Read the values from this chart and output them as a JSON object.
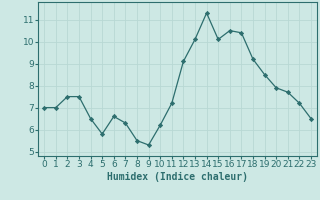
{
  "x": [
    0,
    1,
    2,
    3,
    4,
    5,
    6,
    7,
    8,
    9,
    10,
    11,
    12,
    13,
    14,
    15,
    16,
    17,
    18,
    19,
    20,
    21,
    22,
    23
  ],
  "y": [
    7.0,
    7.0,
    7.5,
    7.5,
    6.5,
    5.8,
    6.6,
    6.3,
    5.5,
    5.3,
    6.2,
    7.2,
    9.1,
    10.1,
    11.3,
    10.1,
    10.5,
    10.4,
    9.2,
    8.5,
    7.9,
    7.7,
    7.2,
    6.5
  ],
  "xlabel": "Humidex (Indice chaleur)",
  "xlim": [
    -0.5,
    23.5
  ],
  "ylim": [
    4.8,
    11.8
  ],
  "yticks": [
    5,
    6,
    7,
    8,
    9,
    10,
    11
  ],
  "xticks": [
    0,
    1,
    2,
    3,
    4,
    5,
    6,
    7,
    8,
    9,
    10,
    11,
    12,
    13,
    14,
    15,
    16,
    17,
    18,
    19,
    20,
    21,
    22,
    23
  ],
  "bg_color": "#cde8e4",
  "grid_color": "#b8d8d4",
  "line_color": "#2d6e6e",
  "xlabel_fontsize": 7,
  "tick_fontsize": 6.5
}
